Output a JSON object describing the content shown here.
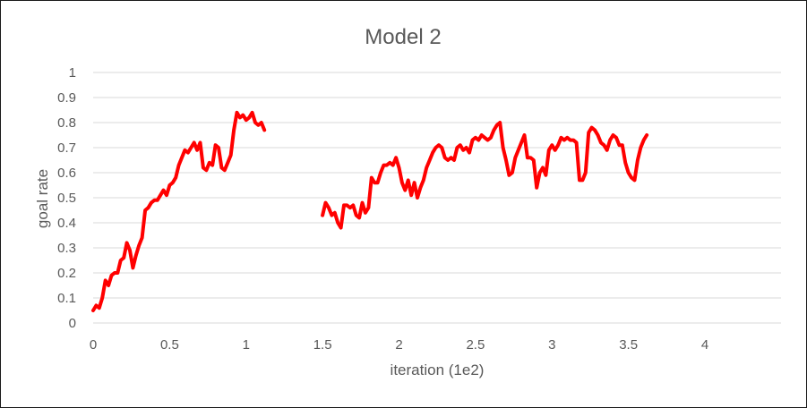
{
  "chart_data": {
    "type": "line",
    "title": "Model 2",
    "xlabel": "iteration (1e2)",
    "ylabel": "goal rate",
    "xlim": [
      0,
      4.5
    ],
    "ylim": [
      0,
      1
    ],
    "x_ticks": [
      "0",
      "0.5",
      "1",
      "1.5",
      "2",
      "2.5",
      "3",
      "3.5",
      "4"
    ],
    "y_ticks": [
      "0",
      "0.1",
      "0.2",
      "0.3",
      "0.4",
      "0.5",
      "0.6",
      "0.7",
      "0.8",
      "0.9",
      "1"
    ],
    "grid": "horizontal",
    "legend": "none",
    "series_color": "#ff0000",
    "segments": [
      {
        "points": [
          [
            0.0,
            0.05
          ],
          [
            0.02,
            0.07
          ],
          [
            0.04,
            0.06
          ],
          [
            0.06,
            0.1
          ],
          [
            0.08,
            0.17
          ],
          [
            0.1,
            0.15
          ],
          [
            0.12,
            0.19
          ],
          [
            0.14,
            0.2
          ],
          [
            0.16,
            0.2
          ],
          [
            0.18,
            0.25
          ],
          [
            0.2,
            0.26
          ],
          [
            0.22,
            0.32
          ],
          [
            0.24,
            0.29
          ],
          [
            0.26,
            0.22
          ],
          [
            0.28,
            0.27
          ],
          [
            0.3,
            0.31
          ],
          [
            0.32,
            0.34
          ],
          [
            0.34,
            0.45
          ],
          [
            0.36,
            0.46
          ],
          [
            0.38,
            0.48
          ],
          [
            0.4,
            0.49
          ],
          [
            0.42,
            0.49
          ],
          [
            0.44,
            0.51
          ],
          [
            0.46,
            0.53
          ],
          [
            0.48,
            0.51
          ],
          [
            0.5,
            0.55
          ],
          [
            0.52,
            0.56
          ],
          [
            0.54,
            0.58
          ],
          [
            0.56,
            0.63
          ],
          [
            0.58,
            0.66
          ],
          [
            0.6,
            0.69
          ],
          [
            0.62,
            0.68
          ],
          [
            0.64,
            0.7
          ],
          [
            0.66,
            0.72
          ],
          [
            0.68,
            0.69
          ],
          [
            0.7,
            0.72
          ],
          [
            0.72,
            0.62
          ],
          [
            0.74,
            0.61
          ],
          [
            0.76,
            0.64
          ],
          [
            0.78,
            0.63
          ],
          [
            0.8,
            0.71
          ],
          [
            0.82,
            0.7
          ],
          [
            0.84,
            0.62
          ],
          [
            0.86,
            0.61
          ],
          [
            0.88,
            0.64
          ],
          [
            0.9,
            0.67
          ],
          [
            0.92,
            0.77
          ],
          [
            0.94,
            0.84
          ],
          [
            0.96,
            0.82
          ],
          [
            0.98,
            0.83
          ],
          [
            1.0,
            0.81
          ],
          [
            1.02,
            0.82
          ],
          [
            1.04,
            0.84
          ],
          [
            1.06,
            0.8
          ],
          [
            1.08,
            0.79
          ],
          [
            1.1,
            0.8
          ],
          [
            1.12,
            0.77
          ]
        ]
      },
      {
        "points": [
          [
            1.5,
            0.43
          ],
          [
            1.52,
            0.48
          ],
          [
            1.54,
            0.46
          ],
          [
            1.56,
            0.43
          ],
          [
            1.58,
            0.44
          ],
          [
            1.6,
            0.4
          ],
          [
            1.62,
            0.38
          ],
          [
            1.64,
            0.47
          ],
          [
            1.66,
            0.47
          ],
          [
            1.68,
            0.46
          ],
          [
            1.7,
            0.47
          ],
          [
            1.72,
            0.43
          ],
          [
            1.74,
            0.42
          ],
          [
            1.76,
            0.48
          ],
          [
            1.78,
            0.44
          ],
          [
            1.8,
            0.46
          ],
          [
            1.82,
            0.58
          ],
          [
            1.84,
            0.56
          ],
          [
            1.86,
            0.56
          ],
          [
            1.88,
            0.6
          ],
          [
            1.9,
            0.63
          ],
          [
            1.92,
            0.63
          ],
          [
            1.94,
            0.64
          ],
          [
            1.96,
            0.63
          ],
          [
            1.98,
            0.66
          ],
          [
            2.0,
            0.62
          ],
          [
            2.02,
            0.56
          ],
          [
            2.04,
            0.53
          ],
          [
            2.06,
            0.57
          ],
          [
            2.08,
            0.51
          ],
          [
            2.1,
            0.56
          ],
          [
            2.12,
            0.5
          ],
          [
            2.14,
            0.54
          ],
          [
            2.16,
            0.57
          ],
          [
            2.18,
            0.62
          ],
          [
            2.2,
            0.65
          ],
          [
            2.22,
            0.68
          ],
          [
            2.24,
            0.7
          ],
          [
            2.26,
            0.71
          ],
          [
            2.28,
            0.7
          ],
          [
            2.3,
            0.66
          ],
          [
            2.32,
            0.65
          ],
          [
            2.34,
            0.66
          ],
          [
            2.36,
            0.65
          ],
          [
            2.38,
            0.7
          ],
          [
            2.4,
            0.71
          ],
          [
            2.42,
            0.69
          ],
          [
            2.44,
            0.7
          ],
          [
            2.46,
            0.68
          ],
          [
            2.48,
            0.73
          ],
          [
            2.5,
            0.74
          ],
          [
            2.52,
            0.73
          ],
          [
            2.54,
            0.75
          ],
          [
            2.56,
            0.74
          ],
          [
            2.58,
            0.73
          ],
          [
            2.6,
            0.74
          ],
          [
            2.62,
            0.77
          ],
          [
            2.64,
            0.79
          ],
          [
            2.66,
            0.8
          ],
          [
            2.68,
            0.7
          ],
          [
            2.7,
            0.65
          ],
          [
            2.72,
            0.59
          ],
          [
            2.74,
            0.6
          ],
          [
            2.76,
            0.66
          ],
          [
            2.78,
            0.69
          ],
          [
            2.8,
            0.72
          ],
          [
            2.82,
            0.75
          ],
          [
            2.84,
            0.66
          ],
          [
            2.86,
            0.66
          ],
          [
            2.88,
            0.65
          ],
          [
            2.9,
            0.54
          ],
          [
            2.92,
            0.6
          ],
          [
            2.94,
            0.62
          ],
          [
            2.96,
            0.59
          ],
          [
            2.98,
            0.69
          ],
          [
            3.0,
            0.71
          ],
          [
            3.02,
            0.69
          ],
          [
            3.04,
            0.71
          ],
          [
            3.06,
            0.74
          ],
          [
            3.08,
            0.73
          ],
          [
            3.1,
            0.74
          ],
          [
            3.12,
            0.73
          ],
          [
            3.14,
            0.73
          ],
          [
            3.16,
            0.72
          ],
          [
            3.18,
            0.57
          ],
          [
            3.2,
            0.57
          ],
          [
            3.22,
            0.6
          ],
          [
            3.24,
            0.76
          ],
          [
            3.26,
            0.78
          ],
          [
            3.28,
            0.77
          ],
          [
            3.3,
            0.75
          ],
          [
            3.32,
            0.72
          ],
          [
            3.34,
            0.71
          ],
          [
            3.36,
            0.69
          ],
          [
            3.38,
            0.73
          ],
          [
            3.4,
            0.75
          ],
          [
            3.42,
            0.74
          ],
          [
            3.44,
            0.71
          ],
          [
            3.46,
            0.71
          ],
          [
            3.48,
            0.64
          ],
          [
            3.5,
            0.6
          ],
          [
            3.52,
            0.58
          ],
          [
            3.54,
            0.57
          ],
          [
            3.56,
            0.65
          ],
          [
            3.58,
            0.7
          ],
          [
            3.6,
            0.73
          ],
          [
            3.62,
            0.75
          ]
        ]
      }
    ]
  }
}
